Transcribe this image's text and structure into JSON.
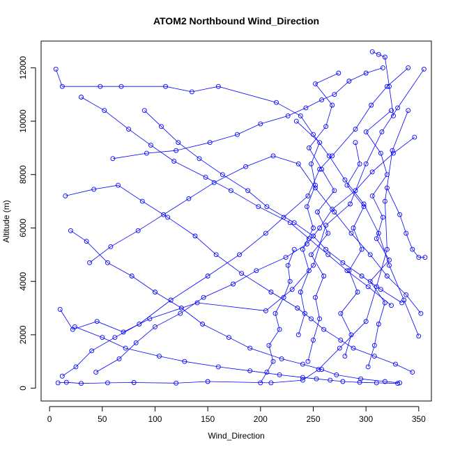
{
  "chart_data": {
    "type": "scatter",
    "title": "ATOM2 Northbound Wind_Direction",
    "xlabel": "Wind_Direction",
    "ylabel": "Altitude (m)",
    "xlim": [
      -8,
      362
    ],
    "ylim": [
      -480,
      13000
    ],
    "x_ticks": [
      "0",
      "50",
      "100",
      "150",
      "200",
      "250",
      "300",
      "350"
    ],
    "y_ticks": [
      "0",
      "2000",
      "4000",
      "6000",
      "8000",
      "10000",
      "12000"
    ],
    "grid": false,
    "legend": "none",
    "colors": {
      "series": "#0000ff",
      "axis": "#000000",
      "background": "#ffffff"
    },
    "series": [
      {
        "x": [
          8,
          16,
          30,
          55,
          80,
          120,
          150,
          210,
          240,
          255,
          275,
          300,
          310,
          320,
          318,
          325,
          340
        ],
        "y": [
          200,
          220,
          180,
          200,
          210,
          190,
          250,
          200,
          300,
          700,
          1500,
          2500,
          3800,
          5200,
          7000,
          8900,
          10400
        ]
      },
      {
        "x": [
          10,
          22,
          45,
          70,
          95,
          140,
          205,
          230,
          250,
          262,
          285,
          300,
          315,
          330,
          355
        ],
        "y": [
          2950,
          2200,
          2500,
          2100,
          2600,
          3200,
          2900,
          3700,
          4600,
          6100,
          6900,
          8400,
          9600,
          10500,
          11950
        ]
      },
      {
        "x": [
          6,
          12,
          48,
          68,
          110,
          135,
          160,
          215,
          238,
          250,
          265,
          280,
          298,
          312,
          322,
          336,
          350
        ],
        "y": [
          11950,
          11300,
          11300,
          11300,
          11300,
          11100,
          11300,
          10700,
          10200,
          9500,
          8700,
          7800,
          6900,
          5800,
          4600,
          3300,
          1950
        ]
      },
      {
        "x": [
          12,
          25,
          40,
          62,
          85,
          115,
          150,
          180,
          205,
          222,
          245,
          256,
          268,
          290,
          305,
          320,
          340
        ],
        "y": [
          450,
          800,
          1400,
          1900,
          2400,
          3300,
          4200,
          5000,
          5800,
          6400,
          7200,
          8200,
          8700,
          9700,
          10600,
          11300,
          12000
        ]
      },
      {
        "x": [
          20,
          35,
          55,
          78,
          100,
          125,
          145,
          170,
          190,
          220,
          240,
          258,
          272,
          295,
          318,
          332
        ],
        "y": [
          5900,
          5500,
          4700,
          4200,
          3600,
          3000,
          2400,
          1900,
          1500,
          1100,
          900,
          700,
          500,
          350,
          250,
          200
        ]
      },
      {
        "x": [
          15,
          42,
          65,
          88,
          112,
          138,
          158,
          182,
          210,
          235,
          248,
          260,
          276,
          288,
          308,
          328,
          344
        ],
        "y": [
          7200,
          7450,
          7600,
          7000,
          6400,
          5700,
          5000,
          4300,
          3600,
          3000,
          2600,
          2200,
          1800,
          1500,
          1200,
          900,
          600
        ]
      },
      {
        "x": [
          30,
          52,
          75,
          96,
          118,
          148,
          172,
          198,
          228,
          246,
          264,
          282,
          302,
          324
        ],
        "y": [
          10900,
          10400,
          9700,
          9100,
          8500,
          7900,
          7400,
          6800,
          6200,
          5600,
          5000,
          4400,
          3800,
          3100
        ]
      },
      {
        "x": [
          60,
          92,
          120,
          152,
          178,
          200,
          226,
          243,
          258,
          270,
          284,
          300,
          316
        ],
        "y": [
          8600,
          8800,
          8900,
          9200,
          9500,
          9900,
          10200,
          10500,
          10800,
          11000,
          11500,
          11800,
          12000
        ]
      },
      {
        "x": [
          24,
          50,
          72,
          104,
          128,
          160,
          190,
          218,
          240,
          253,
          266,
          278,
          294,
          310,
          330
        ],
        "y": [
          2300,
          1900,
          1500,
          1200,
          1000,
          800,
          650,
          500,
          400,
          350,
          300,
          250,
          220,
          200,
          180
        ]
      },
      {
        "x": [
          38,
          58,
          84,
          108,
          132,
          156,
          186,
          212,
          236,
          252,
          270,
          286,
          304,
          320,
          338,
          352
        ],
        "y": [
          4700,
          5300,
          5900,
          6500,
          7100,
          7700,
          8300,
          8700,
          8400,
          7500,
          6600,
          5800,
          5000,
          4200,
          3500,
          2800
        ]
      },
      {
        "x": [
          90,
          106,
          122,
          142,
          164,
          188,
          206,
          232,
          250,
          262,
          278,
          296,
          314,
          334
        ],
        "y": [
          10400,
          9800,
          9200,
          8600,
          8000,
          7400,
          6800,
          6200,
          5700,
          5200,
          4700,
          4200,
          3700,
          3200
        ]
      },
      {
        "x": [
          44,
          66,
          82,
          100,
          124,
          146,
          174,
          196,
          224,
          244,
          256,
          268,
          290,
          306,
          326,
          346
        ],
        "y": [
          600,
          1100,
          1700,
          2300,
          2800,
          3400,
          3900,
          4400,
          4900,
          5400,
          6000,
          6700,
          7400,
          8100,
          8800,
          9400
        ]
      },
      {
        "x": [
          245,
          250,
          256,
          252,
          260,
          248,
          264,
          254,
          270,
          258,
          246,
          262,
          268,
          252,
          274
        ],
        "y": [
          1000,
          1800,
          2600,
          3400,
          4200,
          5000,
          5800,
          6600,
          7400,
          8200,
          9000,
          9800,
          10600,
          11400,
          11800
        ]
      },
      {
        "x": [
          302,
          308,
          312,
          318,
          304,
          322,
          310,
          316,
          306,
          320,
          314,
          300,
          324
        ],
        "y": [
          800,
          1600,
          2400,
          3200,
          4000,
          4800,
          5600,
          6400,
          7200,
          8000,
          8800,
          9600,
          10400
        ]
      },
      {
        "x": [
          236,
          242,
          238,
          246,
          240,
          250,
          244,
          252,
          248,
          256,
          234
        ],
        "y": [
          2000,
          2800,
          3600,
          4400,
          5200,
          6000,
          6800,
          7600,
          8400,
          9200,
          10000
        ]
      },
      {
        "x": [
          200,
          206,
          212,
          208,
          218,
          214,
          222,
          228,
          226,
          232
        ],
        "y": [
          200,
          600,
          1000,
          1600,
          2200,
          2800,
          3400,
          4000,
          4600,
          5200
        ]
      },
      {
        "x": [
          280,
          286,
          276,
          292,
          284,
          296,
          288,
          298,
          282,
          294,
          290
        ],
        "y": [
          1200,
          2000,
          2800,
          3600,
          4400,
          5200,
          6000,
          6800,
          7600,
          8400,
          9200
        ]
      },
      {
        "x": [
          320,
          332,
          338,
          344,
          350,
          356
        ],
        "y": [
          7500,
          6500,
          5800,
          5200,
          4900,
          4900
        ]
      },
      {
        "x": [
          306,
          312,
          318,
          322,
          326
        ],
        "y": [
          12600,
          12500,
          12400,
          11300,
          10200
        ]
      }
    ]
  }
}
